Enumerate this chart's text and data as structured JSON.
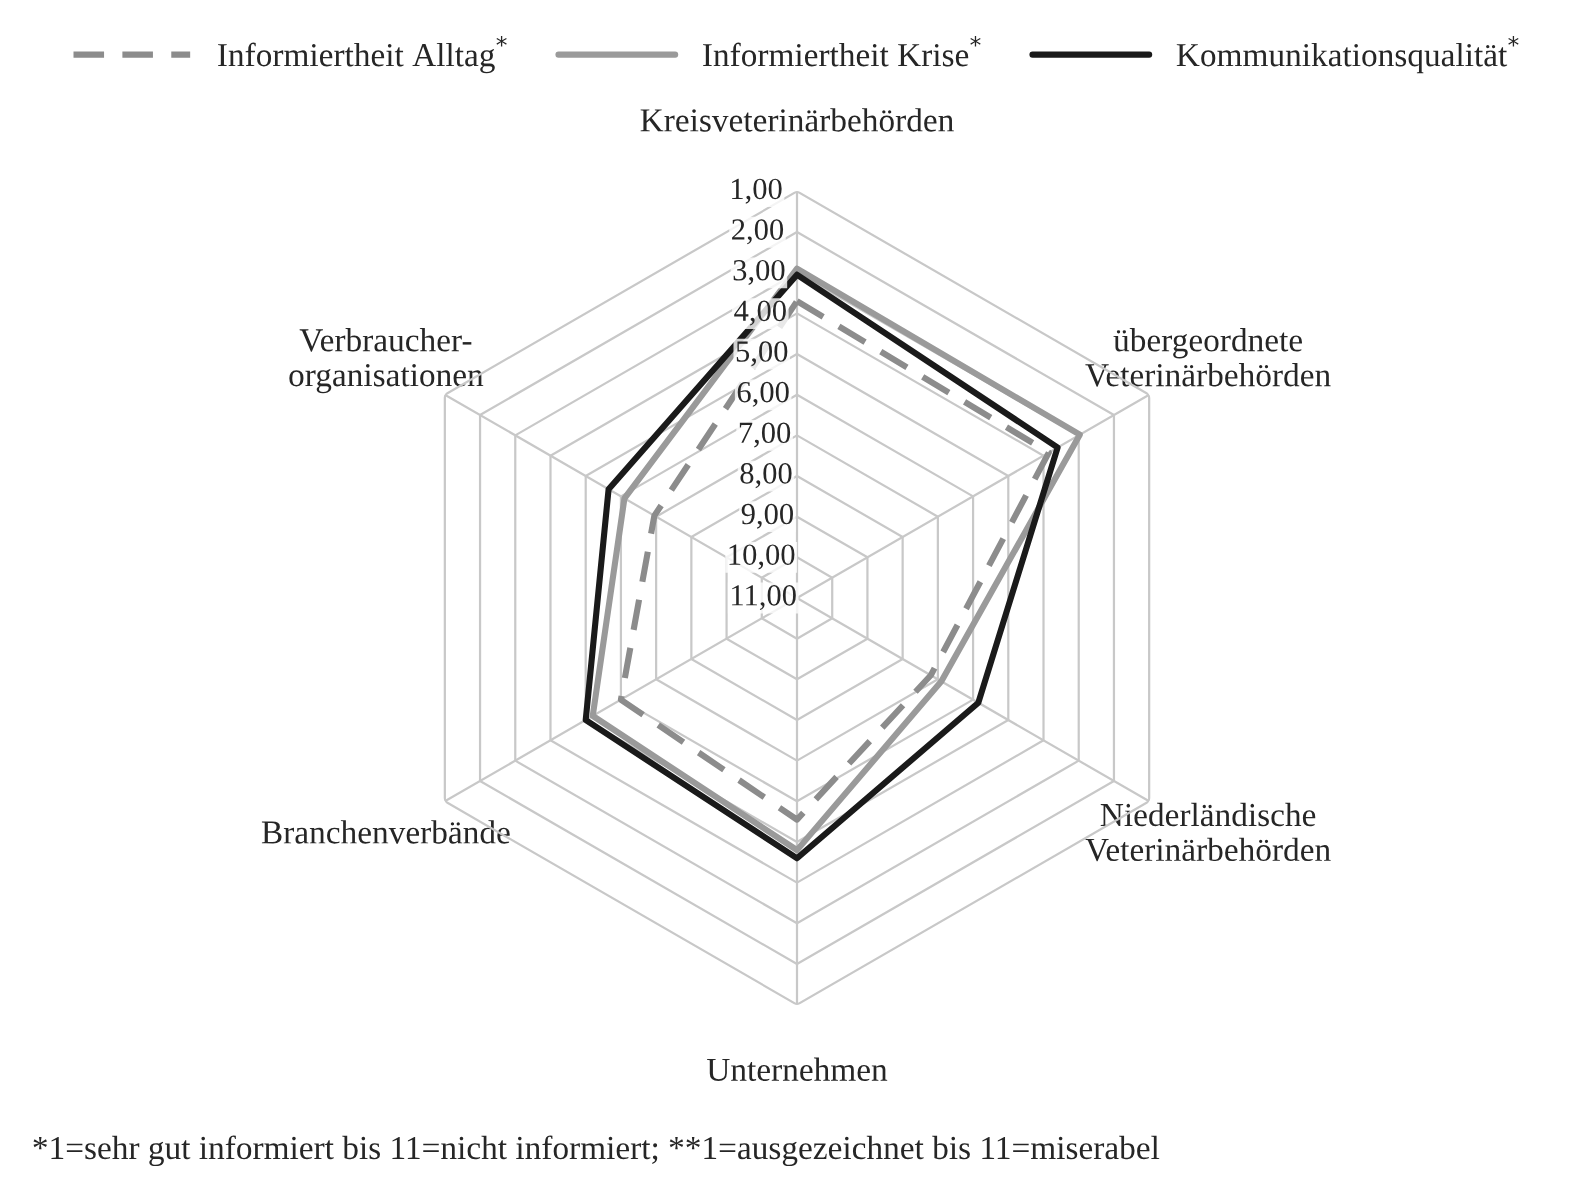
{
  "chart_data": {
    "type": "radar",
    "categories": [
      "Kreisveterinärbehörden",
      "übergeordnete\nVeterinärbehörden",
      "Niederländische\nVeterinärbehörden",
      "Unternehmen",
      "Branchenverbände",
      "Verbraucher-\norganisationen"
    ],
    "series": [
      {
        "name": "Informiertheit Alltag$^{*}$",
        "color": "#8c8c8c",
        "line_style": "dashed",
        "values": [
          3.7,
          3.85,
          7.2,
          5.55,
          6.0,
          6.95
        ]
      },
      {
        "name": "Informiertheit Krise$^{*}$",
        "color": "#9a9a9a",
        "line_style": "solid",
        "values": [
          2.9,
          2.97,
          6.9,
          4.8,
          5.2,
          6.1
        ]
      },
      {
        "name": "Kommunikationsqualität$^{*}$",
        "color": "#1a1a1a",
        "line_style": "solid",
        "values": [
          3.05,
          3.6,
          5.85,
          4.6,
          5.0,
          5.65
        ]
      }
    ],
    "ylim": [
      11,
      1
    ],
    "yticks": [
      {
        "value": 1,
        "label": "1,00"
      },
      {
        "value": 2,
        "label": "2,00"
      },
      {
        "value": 3,
        "label": "3,00"
      },
      {
        "value": 4,
        "label": "4,00"
      },
      {
        "value": 5,
        "label": "5,00"
      },
      {
        "value": 6,
        "label": "6,00"
      },
      {
        "value": 7,
        "label": "7,00"
      },
      {
        "value": 8,
        "label": "8,00"
      },
      {
        "value": 9,
        "label": "9,00"
      },
      {
        "value": 10,
        "label": "10,00"
      },
      {
        "value": 11,
        "label": "11,00"
      }
    ],
    "grid": true,
    "legend": "top",
    "marker": "none",
    "annotations": [
      "*1=sehr gut informiert bis 11=nicht informiert; **1=ausgezeichnet bis 11=miserabel"
    ]
  }
}
